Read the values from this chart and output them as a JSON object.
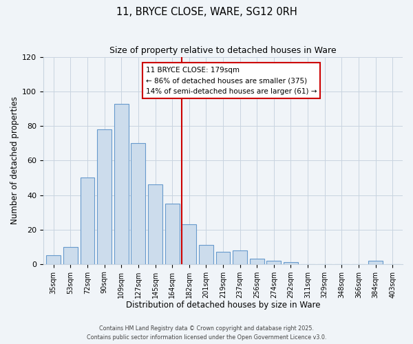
{
  "title": "11, BRYCE CLOSE, WARE, SG12 0RH",
  "subtitle": "Size of property relative to detached houses in Ware",
  "xlabel": "Distribution of detached houses by size in Ware",
  "ylabel": "Number of detached properties",
  "bar_labels": [
    "35sqm",
    "53sqm",
    "72sqm",
    "90sqm",
    "109sqm",
    "127sqm",
    "145sqm",
    "164sqm",
    "182sqm",
    "201sqm",
    "219sqm",
    "237sqm",
    "256sqm",
    "274sqm",
    "292sqm",
    "311sqm",
    "329sqm",
    "348sqm",
    "366sqm",
    "384sqm",
    "403sqm"
  ],
  "bar_values": [
    5,
    10,
    50,
    78,
    93,
    70,
    46,
    35,
    23,
    11,
    7,
    8,
    3,
    2,
    1,
    0,
    0,
    0,
    0,
    2,
    0
  ],
  "bar_color": "#ccdcec",
  "bar_edge_color": "#6699cc",
  "vline_color": "#cc0000",
  "annotation_text": "11 BRYCE CLOSE: 179sqm\n← 86% of detached houses are smaller (375)\n14% of semi-detached houses are larger (61) →",
  "annotation_box_edge": "#cc0000",
  "ylim": [
    0,
    120
  ],
  "yticks": [
    0,
    20,
    40,
    60,
    80,
    100,
    120
  ],
  "footer1": "Contains HM Land Registry data © Crown copyright and database right 2025.",
  "footer2": "Contains public sector information licensed under the Open Government Licence v3.0.",
  "bg_color": "#f0f4f8",
  "grid_color": "#c8d4e0"
}
